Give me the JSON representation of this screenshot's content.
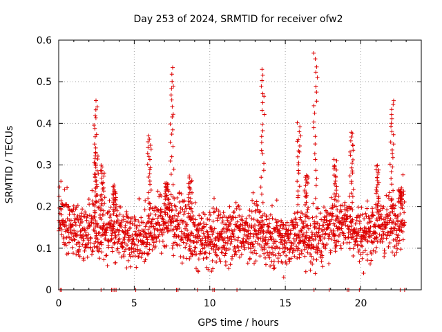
{
  "colors": {
    "series": "#dd0000",
    "grid": "#a0a0a0",
    "axis": "#000000",
    "background": "#ffffff"
  },
  "chart_data": {
    "type": "scatter",
    "title": "Day 253 of 2024, SRMTID for receiver ofw2",
    "xlabel": "GPS time / hours",
    "ylabel": "SRMTID / TECUs",
    "xlim": [
      0,
      24
    ],
    "ylim": [
      0,
      0.6
    ],
    "xticks": [
      0,
      5,
      10,
      15,
      20
    ],
    "xtick_labels": [
      "0",
      "5",
      "10",
      "15",
      "20"
    ],
    "yticks": [
      0,
      0.1,
      0.2,
      0.3,
      0.4,
      0.5,
      0.6
    ],
    "ytick_labels": [
      "0",
      "0.1",
      "0.2",
      "0.3",
      "0.4",
      "0.5",
      "0.6"
    ],
    "grid": true,
    "marker": "plus",
    "series": [
      {
        "name": "ofw2",
        "background_level": {
          "hours": [
            0,
            1,
            2,
            3,
            4,
            5,
            6,
            7,
            8,
            9,
            10,
            11,
            12,
            13,
            14,
            15,
            16,
            17,
            18,
            19,
            20,
            21,
            22,
            22.9
          ],
          "median": [
            0.17,
            0.15,
            0.15,
            0.14,
            0.15,
            0.12,
            0.14,
            0.17,
            0.16,
            0.12,
            0.12,
            0.13,
            0.14,
            0.14,
            0.13,
            0.12,
            0.13,
            0.12,
            0.15,
            0.17,
            0.13,
            0.15,
            0.16,
            0.18
          ]
        },
        "peaks": [
          {
            "x": 2.45,
            "y": 0.45
          },
          {
            "x": 2.5,
            "y": 0.33
          },
          {
            "x": 2.9,
            "y": 0.3
          },
          {
            "x": 3.7,
            "y": 0.25
          },
          {
            "x": 6.0,
            "y": 0.37
          },
          {
            "x": 7.15,
            "y": 0.26
          },
          {
            "x": 7.5,
            "y": 0.53
          },
          {
            "x": 8.7,
            "y": 0.27
          },
          {
            "x": 13.5,
            "y": 0.53
          },
          {
            "x": 15.9,
            "y": 0.4
          },
          {
            "x": 16.4,
            "y": 0.28
          },
          {
            "x": 17.0,
            "y": 0.57
          },
          {
            "x": 18.3,
            "y": 0.31
          },
          {
            "x": 19.4,
            "y": 0.38
          },
          {
            "x": 21.1,
            "y": 0.3
          },
          {
            "x": 22.05,
            "y": 0.45
          },
          {
            "x": 22.6,
            "y": 0.24
          }
        ],
        "near_zero_x": [
          0.1,
          0.2,
          2.8,
          3.5,
          3.6,
          3.7,
          3.8,
          5.1,
          7.8,
          7.9,
          9.2,
          10.2,
          10.3,
          11.8,
          16.9,
          17.9,
          19.1,
          19.2,
          19.9,
          22.6,
          22.9
        ]
      }
    ]
  }
}
